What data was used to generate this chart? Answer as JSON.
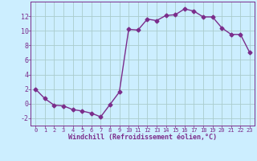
{
  "x": [
    0,
    1,
    2,
    3,
    4,
    5,
    6,
    7,
    8,
    9,
    10,
    11,
    12,
    13,
    14,
    15,
    16,
    17,
    18,
    19,
    20,
    21,
    22,
    23
  ],
  "y": [
    2,
    0.7,
    -0.2,
    -0.3,
    -0.8,
    -1.0,
    -1.3,
    -1.8,
    -0.1,
    1.6,
    10.2,
    10.1,
    11.6,
    11.4,
    12.1,
    12.2,
    13.0,
    12.7,
    11.9,
    11.9,
    10.4,
    9.5,
    9.5,
    7.0
  ],
  "line_color": "#7b2d8b",
  "marker": "D",
  "markersize": 2.5,
  "linewidth": 1.0,
  "xlabel": "Windchill (Refroidissement éolien,°C)",
  "xlabel_fontsize": 6,
  "bg_color": "#cceeff",
  "grid_color": "#aacccc",
  "tick_color": "#7b2d8b",
  "label_color": "#7b2d8b",
  "ylim": [
    -3,
    14
  ],
  "xlim": [
    -0.5,
    23.5
  ],
  "yticks": [
    -2,
    0,
    2,
    4,
    6,
    8,
    10,
    12
  ],
  "xticks": [
    0,
    1,
    2,
    3,
    4,
    5,
    6,
    7,
    8,
    9,
    10,
    11,
    12,
    13,
    14,
    15,
    16,
    17,
    18,
    19,
    20,
    21,
    22,
    23
  ],
  "tick_fontsize": 5,
  "ytick_fontsize": 6
}
